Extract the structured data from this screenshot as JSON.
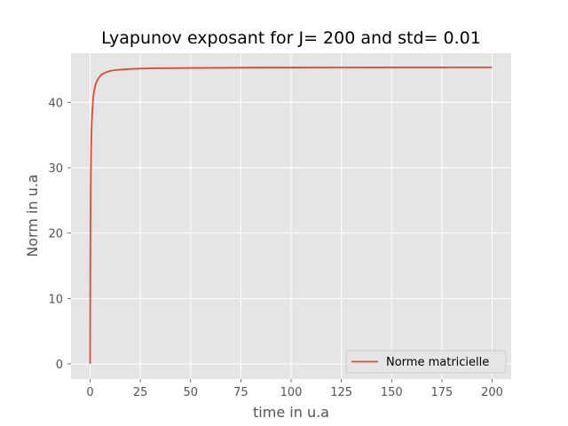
{
  "chart_data": {
    "type": "line",
    "title": "Lyapunov exposant  for J= 200 and std= 0.01",
    "xlabel": "time in u.a",
    "ylabel": "Norm in u.a",
    "xlim": [
      -9.5,
      209.5
    ],
    "ylim": [
      -2.3,
      47.5
    ],
    "xticks": [
      0,
      25,
      50,
      75,
      100,
      125,
      150,
      175,
      200
    ],
    "yticks": [
      0,
      10,
      20,
      30,
      40
    ],
    "grid": true,
    "legend_position": "lower-right",
    "series": [
      {
        "name": "Norme matricielle",
        "color": "#e24a33",
        "x": [
          0,
          0.1,
          0.2,
          0.3,
          0.5,
          0.7,
          1,
          1.5,
          2,
          3,
          4,
          5,
          6,
          8,
          10,
          12,
          15,
          20,
          25,
          30,
          40,
          50,
          60,
          75,
          100,
          125,
          150,
          175,
          200
        ],
        "y": [
          0,
          14,
          22,
          27.5,
          32.5,
          35.5,
          38,
          40.5,
          41.8,
          43,
          43.6,
          44,
          44.3,
          44.6,
          44.8,
          44.9,
          45.0,
          45.1,
          45.15,
          45.2,
          45.22,
          45.25,
          45.27,
          45.3,
          45.32,
          45.33,
          45.34,
          45.34,
          45.35
        ]
      }
    ],
    "style": {
      "plot_background": "#e5e5e5",
      "grid_color": "#ffffff"
    }
  }
}
